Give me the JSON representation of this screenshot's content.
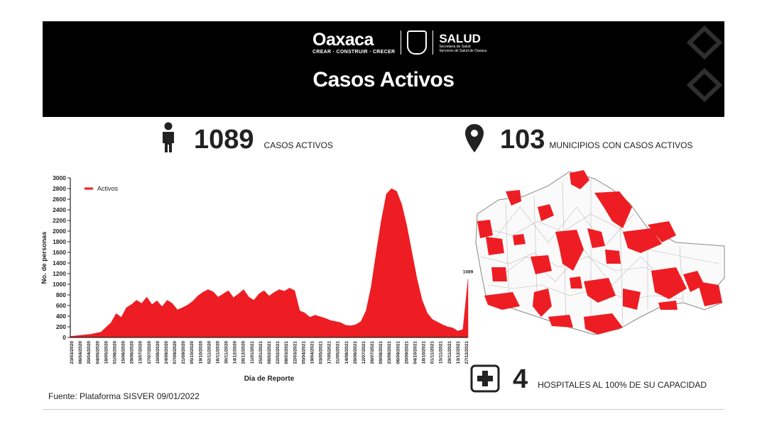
{
  "header": {
    "logo_text": "Oaxaca",
    "logo_tagline": "CREAR · CONSTRUIR · CRECER",
    "salud_title": "SALUD",
    "salud_sub1": "Secretaría de Salud",
    "salud_sub2": "Servicios de Salud de Oaxaca",
    "title": "Casos Activos",
    "colors": {
      "banner": "#000000",
      "accent": "#ee1d23"
    }
  },
  "stats": {
    "active_cases": {
      "value": "1089",
      "label": "CASOS ACTIVOS",
      "icon": "person-icon"
    },
    "municipalities": {
      "value": "103",
      "label": "MUNICIPIOS CON CASOS ACTIVOS",
      "icon": "map-pin-icon"
    },
    "hospitals": {
      "value": "4",
      "label": "HOSPITALES AL 100% DE SU CAPACIDAD",
      "icon": "hospital-cross-icon"
    }
  },
  "footer": {
    "source": "Fuente: Plataforma SISVER   09/01/2022"
  },
  "chart_data": {
    "type": "area",
    "series": [
      {
        "name": "Activos",
        "color": "#ee1d23"
      }
    ],
    "ylabel": "No. de personas",
    "xlabel": "Día de Reporte",
    "ylim": [
      0,
      3000
    ],
    "yticks": [
      0,
      200,
      400,
      600,
      800,
      1000,
      1200,
      1400,
      1600,
      1800,
      2000,
      2200,
      2400,
      2600,
      2800,
      3000
    ],
    "xtick_labels": [
      "23/03/2020",
      "06/04/2020",
      "20/04/2020",
      "04/05/2020",
      "18/05/2020",
      "01/06/2020",
      "15/06/2020",
      "29/06/2020",
      "13/07/2020",
      "27/07/2020",
      "10/08/2020",
      "24/08/2020",
      "07/09/2020",
      "21/09/2020",
      "05/10/2020",
      "19/10/2020",
      "02/11/2020",
      "16/11/2020",
      "30/11/2020",
      "14/12/2020",
      "28/12/2020",
      "11/01/2021",
      "25/01/2021",
      "08/02/2021",
      "22/02/2021",
      "08/03/2021",
      "22/03/2021",
      "05/04/2021",
      "19/04/2021",
      "03/05/2021",
      "17/05/2021",
      "31/05/2021",
      "14/06/2021",
      "28/06/2021",
      "12/07/2021",
      "26/07/2021",
      "09/08/2021",
      "23/08/2021",
      "06/09/2021",
      "20/09/2021",
      "04/10/2021",
      "18/10/2021",
      "01/11/2021",
      "15/11/2021",
      "29/11/2021",
      "13/12/2021",
      "27/12/2021"
    ],
    "points": [
      [
        0,
        20
      ],
      [
        2,
        40
      ],
      [
        4,
        60
      ],
      [
        6,
        100
      ],
      [
        8,
        280
      ],
      [
        9,
        450
      ],
      [
        10,
        380
      ],
      [
        11,
        560
      ],
      [
        12,
        620
      ],
      [
        13,
        700
      ],
      [
        14,
        640
      ],
      [
        15,
        760
      ],
      [
        16,
        620
      ],
      [
        17,
        690
      ],
      [
        18,
        580
      ],
      [
        19,
        700
      ],
      [
        20,
        640
      ],
      [
        21,
        520
      ],
      [
        22,
        560
      ],
      [
        23,
        610
      ],
      [
        24,
        680
      ],
      [
        25,
        780
      ],
      [
        26,
        850
      ],
      [
        27,
        900
      ],
      [
        28,
        860
      ],
      [
        29,
        760
      ],
      [
        30,
        820
      ],
      [
        31,
        880
      ],
      [
        32,
        750
      ],
      [
        33,
        820
      ],
      [
        34,
        900
      ],
      [
        35,
        760
      ],
      [
        36,
        700
      ],
      [
        37,
        820
      ],
      [
        38,
        880
      ],
      [
        39,
        780
      ],
      [
        40,
        850
      ],
      [
        41,
        900
      ],
      [
        42,
        870
      ],
      [
        43,
        930
      ],
      [
        44,
        880
      ],
      [
        45,
        500
      ],
      [
        46,
        460
      ],
      [
        47,
        380
      ],
      [
        48,
        420
      ],
      [
        49,
        390
      ],
      [
        50,
        360
      ],
      [
        51,
        320
      ],
      [
        52,
        300
      ],
      [
        53,
        280
      ],
      [
        54,
        230
      ],
      [
        55,
        220
      ],
      [
        56,
        240
      ],
      [
        57,
        300
      ],
      [
        58,
        500
      ],
      [
        59,
        950
      ],
      [
        60,
        1600
      ],
      [
        61,
        2200
      ],
      [
        62,
        2700
      ],
      [
        63,
        2800
      ],
      [
        64,
        2750
      ],
      [
        65,
        2500
      ],
      [
        66,
        2100
      ],
      [
        67,
        1600
      ],
      [
        68,
        1100
      ],
      [
        69,
        700
      ],
      [
        70,
        460
      ],
      [
        71,
        340
      ],
      [
        72,
        290
      ],
      [
        73,
        240
      ],
      [
        74,
        200
      ],
      [
        75,
        180
      ],
      [
        76,
        120
      ],
      [
        77,
        150
      ],
      [
        78,
        1089
      ]
    ],
    "x_max": 78,
    "end_label": "1089",
    "legend_position": "top-left"
  },
  "map": {
    "description_color_affected": "#ee1d23",
    "description_color_unaffected": "#ffffff"
  }
}
